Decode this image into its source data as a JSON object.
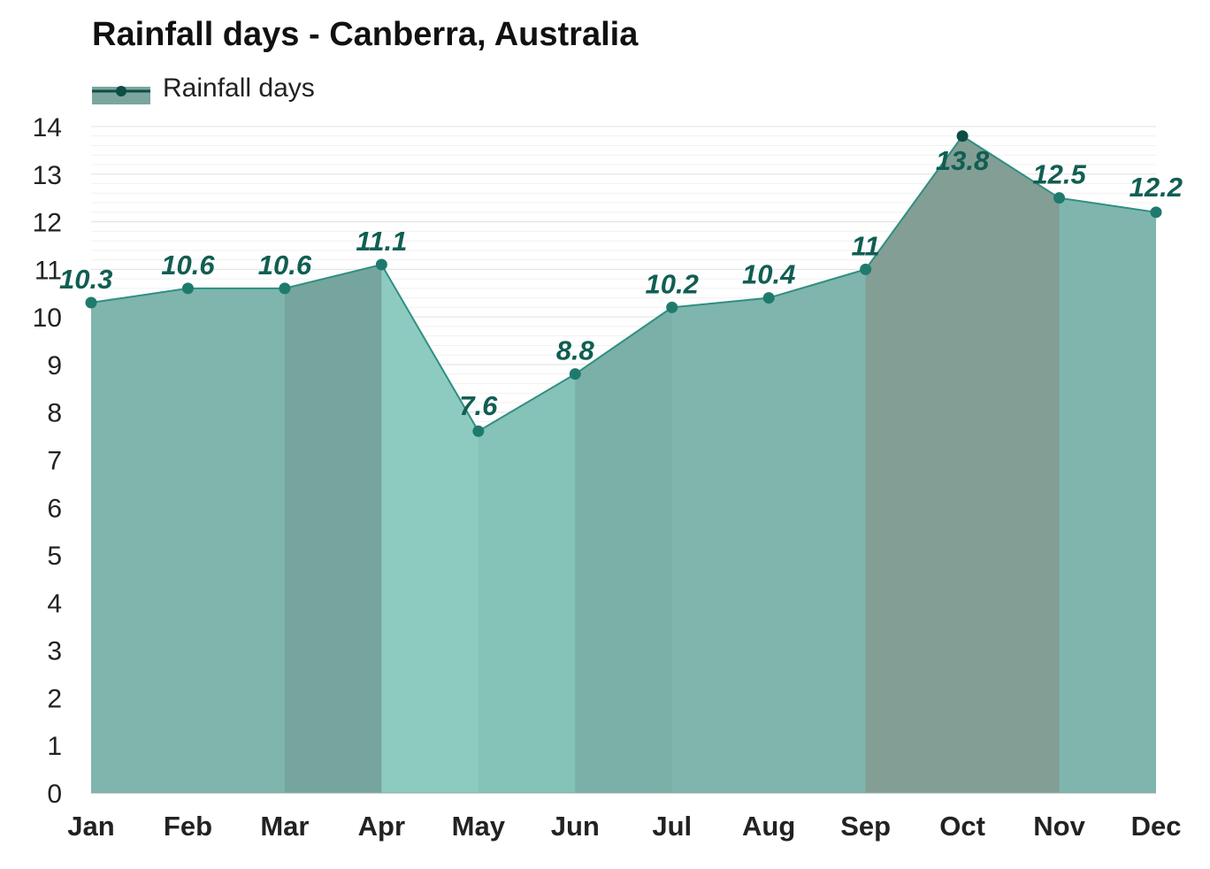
{
  "chart_data": {
    "type": "area",
    "title": "Rainfall days - Canberra, Australia",
    "categories": [
      "Jan",
      "Feb",
      "Mar",
      "Apr",
      "May",
      "Jun",
      "Jul",
      "Aug",
      "Sep",
      "Oct",
      "Nov",
      "Dec"
    ],
    "series": [
      {
        "name": "Rainfall days",
        "values": [
          10.3,
          10.6,
          10.6,
          11.1,
          7.6,
          8.8,
          10.2,
          10.4,
          11,
          13.8,
          12.5,
          12.2
        ]
      }
    ],
    "data_labels": [
      "10.3",
      "10.6",
      "10.6",
      "11.1",
      "7.6",
      "8.8",
      "10.2",
      "10.4",
      "11",
      "13.8",
      "12.5",
      "12.2"
    ],
    "y_ticks": [
      "0",
      "1",
      "2",
      "3",
      "4",
      "5",
      "6",
      "7",
      "8",
      "9",
      "10",
      "11",
      "12",
      "13",
      "14"
    ],
    "ylim": [
      0,
      14
    ],
    "xlabel": "",
    "ylabel": "",
    "grid": true,
    "legend_position": "top-left",
    "colors": {
      "area_fill": "#7fb5ad",
      "line": "#2f8f80",
      "marker": "#1f7a6d",
      "peak_marker": "#0d4d45",
      "label": "#115e52",
      "legend_swatch": "#7aa69e",
      "legend_marker": "#0d4d45"
    }
  }
}
